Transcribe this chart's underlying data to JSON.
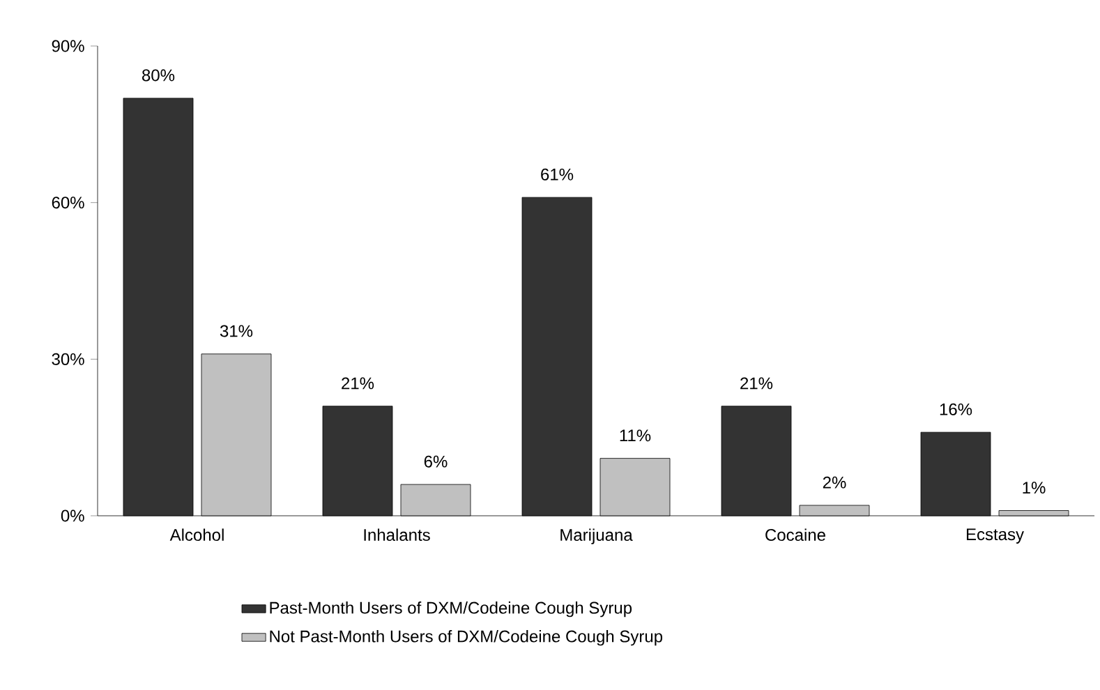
{
  "chart_data": {
    "type": "bar",
    "categories": [
      "Alcohol",
      "Inhalants",
      "Marijuana",
      "Cocaine",
      "Ecstasy"
    ],
    "series": [
      {
        "name": "Past-Month Users of DXM/Codeine Cough Syrup",
        "color": "#333333",
        "values": [
          80,
          21,
          61,
          21,
          16
        ],
        "value_labels": [
          "80%",
          "21%",
          "61%",
          "21%",
          "16%"
        ]
      },
      {
        "name": "Not Past-Month Users of DXM/Codeine Cough Syrup",
        "color": "#c0c0c0",
        "values": [
          31,
          6,
          11,
          2,
          1
        ],
        "value_labels": [
          "31%",
          "6%",
          "11%",
          "2%",
          "1%"
        ]
      }
    ],
    "ylim": [
      0,
      90
    ],
    "yticks": [
      {
        "value": 0,
        "label": "0%"
      },
      {
        "value": 30,
        "label": "30%"
      },
      {
        "value": 60,
        "label": "60%"
      },
      {
        "value": 90,
        "label": "90%"
      }
    ],
    "grid": false,
    "legend": "bottom"
  }
}
